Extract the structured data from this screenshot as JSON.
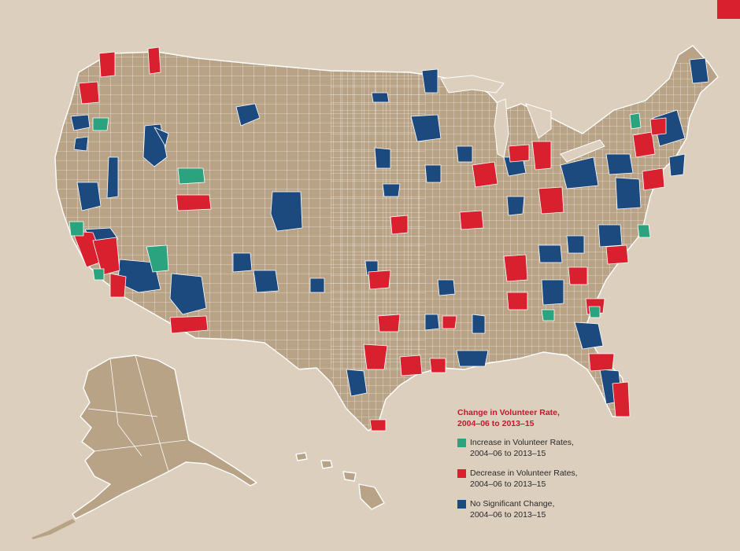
{
  "colors": {
    "background": "#dccfbe",
    "land": "#b8a386",
    "border": "#ffffff",
    "increase": "#2aa37e",
    "decrease": "#d8202f",
    "no_change": "#1c4a7e",
    "accent": "#d8202f"
  },
  "legend": {
    "title": "Change in Volunteer Rate,\n2004–06 to 2013–15",
    "items": [
      {
        "key": "increase",
        "label": "Increase in Volunteer Rates,\n2004–06 to 2013–15"
      },
      {
        "key": "decrease",
        "label": "Decrease in Volunteer Rates,\n2004–06 to 2013–15"
      },
      {
        "key": "no_change",
        "label": "No Significant Change,\n2004–06 to 2013–15"
      }
    ]
  }
}
